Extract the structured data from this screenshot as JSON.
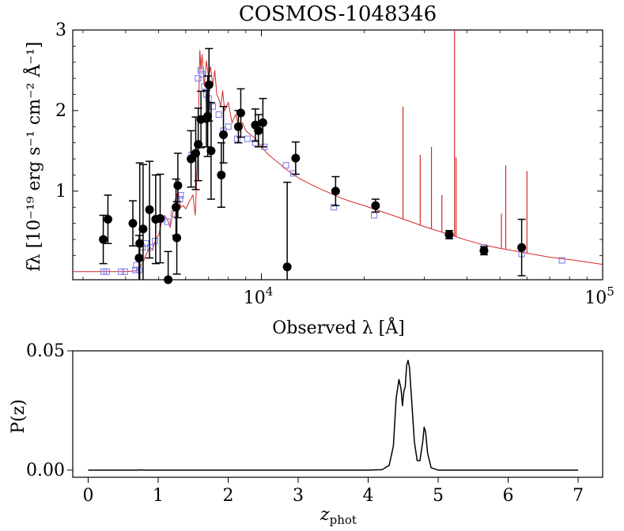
{
  "figure": {
    "title": "COSMOS-1048346"
  },
  "chart_data": [
    {
      "type": "scatter",
      "name": "sed",
      "title": "COSMOS-1048346",
      "xlabel": "Observed λ [Å]",
      "ylabel": "fλ [10⁻¹⁹ erg s⁻¹ cm⁻² Å⁻¹]",
      "xscale": "log",
      "xlim": [
        2800,
        100000
      ],
      "ylim": [
        -0.1,
        3.0
      ],
      "xticks": [
        {
          "value": 10000,
          "base": "10",
          "exp": "4"
        },
        {
          "value": 100000,
          "base": "10",
          "exp": "5"
        }
      ],
      "yticks": [
        {
          "value": 1,
          "label": "1"
        },
        {
          "value": 2,
          "label": "2"
        },
        {
          "value": 3,
          "label": "3"
        }
      ],
      "colors": {
        "model": "#d62728",
        "photometry": "#000000",
        "model_photometry": "#7777ee"
      },
      "series": [
        {
          "name": "model",
          "kind": "line",
          "points": [
            [
              2800,
              0.0
            ],
            [
              3500,
              0.0
            ],
            [
              4000,
              0.0
            ],
            [
              4300,
              0.01
            ],
            [
              4400,
              0.05
            ],
            [
              4500,
              0.12
            ],
            [
              4600,
              0.22
            ],
            [
              4700,
              0.3
            ],
            [
              4800,
              0.28
            ],
            [
              4900,
              0.4
            ],
            [
              5000,
              0.45
            ],
            [
              5100,
              0.62
            ],
            [
              5200,
              0.7
            ],
            [
              5300,
              0.65
            ],
            [
              5400,
              0.55
            ],
            [
              5500,
              0.72
            ],
            [
              5600,
              0.9
            ],
            [
              5700,
              1.0
            ],
            [
              5800,
              0.8
            ],
            [
              5900,
              0.82
            ],
            [
              6000,
              0.78
            ],
            [
              6200,
              0.9
            ],
            [
              6300,
              0.95
            ],
            [
              6400,
              0.7
            ],
            [
              6500,
              1.4
            ],
            [
              6600,
              2.75
            ],
            [
              6650,
              2.5
            ],
            [
              6700,
              2.7
            ],
            [
              6800,
              2.3
            ],
            [
              6900,
              2.62
            ],
            [
              7000,
              2.4
            ],
            [
              7100,
              2.55
            ],
            [
              7200,
              2.3
            ],
            [
              7300,
              2.5
            ],
            [
              7400,
              2.2
            ],
            [
              7500,
              2.15
            ],
            [
              7600,
              2.05
            ],
            [
              7700,
              2.25
            ],
            [
              7800,
              2.0
            ],
            [
              8000,
              2.1
            ],
            [
              8200,
              1.85
            ],
            [
              8400,
              1.95
            ],
            [
              8600,
              1.8
            ],
            [
              8800,
              1.85
            ],
            [
              9000,
              1.75
            ],
            [
              9300,
              1.7
            ],
            [
              9600,
              1.65
            ],
            [
              10000,
              1.55
            ],
            [
              10500,
              1.45
            ],
            [
              11000,
              1.38
            ],
            [
              12000,
              1.25
            ],
            [
              13000,
              1.15
            ],
            [
              14000,
              1.08
            ],
            [
              15000,
              1.02
            ],
            [
              16000,
              0.97
            ],
            [
              17000,
              0.92
            ],
            [
              18000,
              0.88
            ],
            [
              20000,
              0.82
            ],
            [
              22000,
              0.76
            ],
            [
              25000,
              0.68
            ],
            [
              30000,
              0.56
            ],
            [
              35000,
              0.47
            ],
            [
              40000,
              0.39
            ],
            [
              45000,
              0.33
            ],
            [
              50000,
              0.29
            ],
            [
              60000,
              0.23
            ],
            [
              70000,
              0.18
            ],
            [
              80000,
              0.15
            ],
            [
              90000,
              0.12
            ],
            [
              100000,
              0.09
            ]
          ],
          "emission_lines": [
            {
              "x": 21600,
              "y": 0.82
            },
            {
              "x": 26000,
              "y": 2.05
            },
            {
              "x": 29200,
              "y": 1.45
            },
            {
              "x": 31500,
              "y": 1.55
            },
            {
              "x": 33800,
              "y": 0.95
            },
            {
              "x": 36800,
              "y": 3.0
            },
            {
              "x": 37200,
              "y": 1.42
            },
            {
              "x": 50500,
              "y": 0.72
            },
            {
              "x": 52000,
              "y": 1.32
            },
            {
              "x": 60000,
              "y": 1.25
            }
          ]
        },
        {
          "name": "model_photometry",
          "kind": "open_square",
          "points": [
            [
              3450,
              0.0
            ],
            [
              3520,
              0.0
            ],
            [
              3880,
              0.0
            ],
            [
              3980,
              0.0
            ],
            [
              4270,
              0.02
            ],
            [
              4300,
              0.08
            ],
            [
              4380,
              0.02
            ],
            [
              4480,
              0.3
            ],
            [
              4590,
              0.35
            ],
            [
              4720,
              0.3
            ],
            [
              4880,
              0.38
            ],
            [
              5120,
              0.65
            ],
            [
              5300,
              0.62
            ],
            [
              5540,
              0.72
            ],
            [
              5770,
              0.9
            ],
            [
              5800,
              0.95
            ],
            [
              6250,
              1.45
            ],
            [
              6400,
              1.4
            ],
            [
              6520,
              2.4
            ],
            [
              6640,
              2.5
            ],
            [
              6700,
              2.45
            ],
            [
              6800,
              2.3
            ],
            [
              6900,
              2.2
            ],
            [
              7000,
              2.15
            ],
            [
              7200,
              2.05
            ],
            [
              7500,
              1.95
            ],
            [
              7740,
              1.75
            ],
            [
              8000,
              1.8
            ],
            [
              8500,
              1.65
            ],
            [
              9100,
              1.65
            ],
            [
              9600,
              1.6
            ],
            [
              10200,
              1.55
            ],
            [
              11800,
              1.32
            ],
            [
              12400,
              1.22
            ],
            [
              16300,
              0.8
            ],
            [
              21400,
              0.7
            ],
            [
              35600,
              0.44
            ],
            [
              45000,
              0.3
            ],
            [
              57900,
              0.22
            ],
            [
              76000,
              0.14
            ]
          ]
        },
        {
          "name": "photometry",
          "kind": "errorbar",
          "points": [
            {
              "x": 3440,
              "y": 0.4,
              "err": 0.3
            },
            {
              "x": 3550,
              "y": 0.65,
              "err": 0.3
            },
            {
              "x": 4200,
              "y": 0.6,
              "err": 0.28
            },
            {
              "x": 4380,
              "y": 0.17,
              "err": 0.28
            },
            {
              "x": 4400,
              "y": 0.35,
              "err": 1.0
            },
            {
              "x": 4500,
              "y": 0.53,
              "err": 0.8
            },
            {
              "x": 4700,
              "y": 0.77,
              "err": 0.6
            },
            {
              "x": 4900,
              "y": 0.65,
              "err": 0.55
            },
            {
              "x": 5050,
              "y": 0.66,
              "err": 0.55
            },
            {
              "x": 5330,
              "y": -0.1,
              "err": 0.35
            },
            {
              "x": 5620,
              "y": 0.8,
              "err": 0.35
            },
            {
              "x": 5650,
              "y": 0.42,
              "err": 0.45
            },
            {
              "x": 5690,
              "y": 1.07,
              "err": 0.4
            },
            {
              "x": 6220,
              "y": 1.4,
              "err": 0.35
            },
            {
              "x": 6420,
              "y": 1.47,
              "err": 0.45
            },
            {
              "x": 6530,
              "y": 1.58,
              "err": 0.45
            },
            {
              "x": 6650,
              "y": 1.89,
              "err": 0.35
            },
            {
              "x": 6900,
              "y": 1.9,
              "err": 0.35
            },
            {
              "x": 6960,
              "y": 1.93,
              "err": 0.5
            },
            {
              "x": 7020,
              "y": 2.32,
              "err": 0.45
            },
            {
              "x": 7120,
              "y": 1.5,
              "err": 0.6
            },
            {
              "x": 7630,
              "y": 1.2,
              "err": 0.4
            },
            {
              "x": 7740,
              "y": 1.7,
              "err": 0.35
            },
            {
              "x": 8560,
              "y": 1.8,
              "err": 0.2
            },
            {
              "x": 8700,
              "y": 1.97,
              "err": 0.3
            },
            {
              "x": 9600,
              "y": 1.82,
              "err": 0.2
            },
            {
              "x": 9800,
              "y": 1.75,
              "err": 0.2
            },
            {
              "x": 10100,
              "y": 1.85,
              "err": 0.3
            },
            {
              "x": 11900,
              "y": 0.06,
              "err": 1.05
            },
            {
              "x": 12600,
              "y": 1.41,
              "err": 0.2
            },
            {
              "x": 16500,
              "y": 1.0,
              "err": 0.18
            },
            {
              "x": 21600,
              "y": 0.82,
              "err": 0.08
            },
            {
              "x": 35500,
              "y": 0.46,
              "err": 0.05
            },
            {
              "x": 44900,
              "y": 0.26,
              "err": 0.05
            },
            {
              "x": 57900,
              "y": 0.3,
              "err": 0.35
            }
          ]
        }
      ]
    },
    {
      "type": "line",
      "name": "pz",
      "title": "",
      "xlabel": "z",
      "xlabel_sub": "phot",
      "ylabel": "P(z)",
      "xlim": [
        -0.22,
        7.35
      ],
      "ylim": [
        -0.003,
        0.05
      ],
      "xticks": [
        {
          "value": 0,
          "label": "0"
        },
        {
          "value": 1,
          "label": "1"
        },
        {
          "value": 2,
          "label": "2"
        },
        {
          "value": 3,
          "label": "3"
        },
        {
          "value": 4,
          "label": "4"
        },
        {
          "value": 5,
          "label": "5"
        },
        {
          "value": 6,
          "label": "6"
        },
        {
          "value": 7,
          "label": "7"
        }
      ],
      "yticks": [
        {
          "value": 0.0,
          "label": "0.00"
        },
        {
          "value": 0.05,
          "label": "0.05"
        }
      ],
      "series": [
        {
          "name": "P(z)",
          "color": "#000000",
          "points": [
            [
              0,
              0.0
            ],
            [
              0.7,
              0.0
            ],
            [
              0.75,
              0.0001
            ],
            [
              0.8,
              0.0
            ],
            [
              4.0,
              0.0
            ],
            [
              4.2,
              0.0002
            ],
            [
              4.3,
              0.002
            ],
            [
              4.36,
              0.01
            ],
            [
              4.4,
              0.03
            ],
            [
              4.44,
              0.038
            ],
            [
              4.47,
              0.034
            ],
            [
              4.49,
              0.027
            ],
            [
              4.51,
              0.033
            ],
            [
              4.53,
              0.035
            ],
            [
              4.55,
              0.044
            ],
            [
              4.57,
              0.046
            ],
            [
              4.59,
              0.043
            ],
            [
              4.62,
              0.03
            ],
            [
              4.66,
              0.012
            ],
            [
              4.7,
              0.004
            ],
            [
              4.74,
              0.004
            ],
            [
              4.78,
              0.012
            ],
            [
              4.8,
              0.018
            ],
            [
              4.82,
              0.016
            ],
            [
              4.85,
              0.007
            ],
            [
              4.9,
              0.001
            ],
            [
              5.0,
              0.0
            ],
            [
              7.0,
              0.0
            ]
          ]
        }
      ]
    }
  ]
}
